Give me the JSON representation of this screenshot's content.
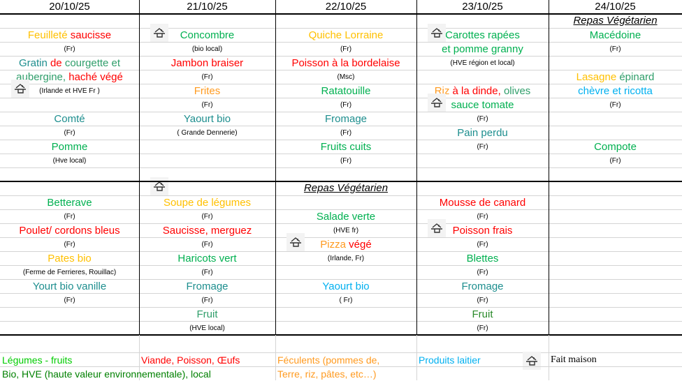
{
  "colors": {
    "yellow": "#ffc000",
    "orange": "#ff9a1f",
    "red": "#ff0000",
    "green": "#00b050",
    "teal": "#1d8e8e",
    "sea": "#2f9e6a",
    "blue": "#00b0f0",
    "darkgreen": "#2a8a2a",
    "legend_green": "#00cc00",
    "legend_darkgreen": "#008000"
  },
  "days": [
    "20/10/25",
    "21/10/25",
    "22/10/25",
    "23/10/25",
    "24/10/25"
  ],
  "week1": [
    [
      {
        "k": "e"
      },
      {
        "k": "b",
        "s": [
          {
            "t": "Feuilleté ",
            "c": "yellow"
          },
          {
            "t": "saucisse",
            "c": "red"
          }
        ]
      },
      {
        "k": "s",
        "t": "(Fr)"
      },
      {
        "k": "b",
        "s": [
          {
            "t": "Gratin ",
            "c": "teal"
          },
          {
            "t": "de ",
            "c": "red"
          },
          {
            "t": "courgette et",
            "c": "sea"
          }
        ]
      },
      {
        "k": "b",
        "s": [
          {
            "t": "aubergine, ",
            "c": "sea"
          },
          {
            "t": "haché végé",
            "c": "red"
          }
        ]
      },
      {
        "k": "s",
        "t": "(Irlande et HVE Fr )",
        "icon": "house-icon"
      },
      {
        "k": "e"
      },
      {
        "k": "b",
        "s": [
          {
            "t": "Comté",
            "c": "teal"
          }
        ]
      },
      {
        "k": "s",
        "t": "(Fr)"
      },
      {
        "k": "b",
        "s": [
          {
            "t": "Pomme",
            "c": "green"
          }
        ]
      },
      {
        "k": "s",
        "t": "(Hve local)"
      },
      {
        "k": "e"
      }
    ],
    [
      {
        "k": "e"
      },
      {
        "k": "b",
        "s": [
          {
            "t": "Concombre",
            "c": "green"
          }
        ],
        "icon": "house-icon"
      },
      {
        "k": "s",
        "t": "(bio local)"
      },
      {
        "k": "b",
        "s": [
          {
            "t": "Jambon braiser",
            "c": "red"
          }
        ]
      },
      {
        "k": "s",
        "t": "(Fr)"
      },
      {
        "k": "b",
        "s": [
          {
            "t": "Frites",
            "c": "orange"
          }
        ]
      },
      {
        "k": "s",
        "t": "(Fr)"
      },
      {
        "k": "b",
        "s": [
          {
            "t": "Yaourt bio",
            "c": "teal"
          }
        ]
      },
      {
        "k": "s",
        "t": "( Grande Dennerie)"
      },
      {
        "k": "e"
      },
      {
        "k": "e"
      },
      {
        "k": "e"
      }
    ],
    [
      {
        "k": "e"
      },
      {
        "k": "b",
        "s": [
          {
            "t": "Quiche Lorraine",
            "c": "yellow"
          }
        ]
      },
      {
        "k": "s",
        "t": "(Fr)"
      },
      {
        "k": "b",
        "s": [
          {
            "t": "Poisson à la bordelaise",
            "c": "red"
          }
        ]
      },
      {
        "k": "s",
        "t": "(Msc)"
      },
      {
        "k": "b",
        "s": [
          {
            "t": "Ratatouille",
            "c": "green"
          }
        ]
      },
      {
        "k": "s",
        "t": "(Fr)"
      },
      {
        "k": "b",
        "s": [
          {
            "t": "Fromage",
            "c": "teal"
          }
        ]
      },
      {
        "k": "s",
        "t": "(Fr)"
      },
      {
        "k": "b",
        "s": [
          {
            "t": "Fruits cuits",
            "c": "green"
          }
        ]
      },
      {
        "k": "s",
        "t": "(Fr)"
      },
      {
        "k": "e"
      }
    ],
    [
      {
        "k": "e"
      },
      {
        "k": "b",
        "s": [
          {
            "t": "Carottes rapées",
            "c": "green"
          }
        ],
        "icon": "house-icon"
      },
      {
        "k": "b",
        "s": [
          {
            "t": "et pomme granny",
            "c": "green"
          }
        ]
      },
      {
        "k": "s",
        "t": "(HVE région et local)"
      },
      {
        "k": "e"
      },
      {
        "k": "b",
        "s": [
          {
            "t": "Riz ",
            "c": "orange"
          },
          {
            "t": "à la dinde, ",
            "c": "red"
          },
          {
            "t": "olives",
            "c": "sea"
          }
        ]
      },
      {
        "k": "b",
        "s": [
          {
            "t": "sauce tomate",
            "c": "green"
          }
        ],
        "icon": "house-icon"
      },
      {
        "k": "s",
        "t": "(Fr)"
      },
      {
        "k": "b",
        "s": [
          {
            "t": "Pain perdu",
            "c": "teal"
          }
        ]
      },
      {
        "k": "s",
        "t": "(Fr)"
      },
      {
        "k": "e"
      },
      {
        "k": "e"
      }
    ],
    [
      {
        "k": "t",
        "t": "Repas Végétarien"
      },
      {
        "k": "b",
        "s": [
          {
            "t": "Macédoine",
            "c": "green"
          }
        ]
      },
      {
        "k": "s",
        "t": "(Fr)"
      },
      {
        "k": "e"
      },
      {
        "k": "b",
        "s": [
          {
            "t": "Lasagne ",
            "c": "yellow"
          },
          {
            "t": "épinard",
            "c": "sea"
          }
        ]
      },
      {
        "k": "b",
        "s": [
          {
            "t": "chèvre et ricotta",
            "c": "blue"
          }
        ]
      },
      {
        "k": "s",
        "t": "(Fr)"
      },
      {
        "k": "e"
      },
      {
        "k": "e"
      },
      {
        "k": "b",
        "s": [
          {
            "t": "Compote",
            "c": "green"
          }
        ]
      },
      {
        "k": "s",
        "t": "(Fr)"
      },
      {
        "k": "e"
      }
    ]
  ],
  "week2": [
    [
      {
        "k": "e"
      },
      {
        "k": "b",
        "s": [
          {
            "t": "Betterave",
            "c": "green"
          }
        ]
      },
      {
        "k": "s",
        "t": "(Fr)"
      },
      {
        "k": "b",
        "s": [
          {
            "t": "Poulet/ cordons bleus",
            "c": "red"
          }
        ]
      },
      {
        "k": "s",
        "t": "(Fr)"
      },
      {
        "k": "b",
        "s": [
          {
            "t": "Pates bio",
            "c": "yellow"
          }
        ]
      },
      {
        "k": "s",
        "t": "(Ferme de Ferrieres, Rouillac)"
      },
      {
        "k": "b",
        "s": [
          {
            "t": "Yourt bio vanille",
            "c": "teal"
          }
        ]
      },
      {
        "k": "s",
        "t": "(Fr)"
      },
      {
        "k": "e"
      },
      {
        "k": "e"
      }
    ],
    [
      {
        "k": "e",
        "icon": "house-icon"
      },
      {
        "k": "b",
        "s": [
          {
            "t": "Soupe de légumes",
            "c": "yellow"
          }
        ]
      },
      {
        "k": "s",
        "t": "(Fr)"
      },
      {
        "k": "b",
        "s": [
          {
            "t": "Saucisse, merguez",
            "c": "red"
          }
        ]
      },
      {
        "k": "s",
        "t": "(Fr)"
      },
      {
        "k": "b",
        "s": [
          {
            "t": "Haricots vert",
            "c": "green"
          }
        ]
      },
      {
        "k": "s",
        "t": "(Fr)"
      },
      {
        "k": "b",
        "s": [
          {
            "t": "Fromage",
            "c": "teal"
          }
        ]
      },
      {
        "k": "s",
        "t": "(Fr)"
      },
      {
        "k": "b",
        "s": [
          {
            "t": "Fruit",
            "c": "sea"
          }
        ]
      },
      {
        "k": "s",
        "t": "(HVE local)"
      }
    ],
    [
      {
        "k": "t",
        "t": "Repas Végétarien"
      },
      {
        "k": "e"
      },
      {
        "k": "b",
        "s": [
          {
            "t": "Salade verte",
            "c": "green"
          }
        ]
      },
      {
        "k": "s",
        "t": "(HVE fr)"
      },
      {
        "k": "b",
        "s": [
          {
            "t": "Pizza ",
            "c": "orange"
          },
          {
            "t": "végé",
            "c": "red"
          }
        ],
        "icon": "house-icon"
      },
      {
        "k": "s",
        "t": "(Irlande, Fr)"
      },
      {
        "k": "e"
      },
      {
        "k": "b",
        "s": [
          {
            "t": "Yaourt bio",
            "c": "blue"
          }
        ]
      },
      {
        "k": "s",
        "t": "( Fr)"
      },
      {
        "k": "e"
      },
      {
        "k": "e"
      }
    ],
    [
      {
        "k": "e"
      },
      {
        "k": "b",
        "s": [
          {
            "t": "Mousse de canard",
            "c": "red"
          }
        ]
      },
      {
        "k": "s",
        "t": "(Fr)"
      },
      {
        "k": "b",
        "s": [
          {
            "t": "Poisson frais",
            "c": "red"
          }
        ],
        "icon": "house-icon"
      },
      {
        "k": "s",
        "t": "(Fr)"
      },
      {
        "k": "b",
        "s": [
          {
            "t": "Blettes",
            "c": "green"
          }
        ]
      },
      {
        "k": "s",
        "t": "(Fr)"
      },
      {
        "k": "b",
        "s": [
          {
            "t": "Fromage",
            "c": "teal"
          }
        ]
      },
      {
        "k": "s",
        "t": "(Fr)"
      },
      {
        "k": "b",
        "s": [
          {
            "t": "Fruit",
            "c": "darkgreen"
          }
        ]
      },
      {
        "k": "s",
        "t": "(Fr)"
      }
    ],
    [
      {
        "k": "e"
      },
      {
        "k": "e"
      },
      {
        "k": "e"
      },
      {
        "k": "e"
      },
      {
        "k": "e"
      },
      {
        "k": "e"
      },
      {
        "k": "e"
      },
      {
        "k": "e"
      },
      {
        "k": "e"
      },
      {
        "k": "e"
      },
      {
        "k": "e"
      }
    ]
  ],
  "legend": {
    "vegetables": "Légumes - fruits",
    "organic": "Bio, HVE (haute valeur environnementale), local",
    "meat": "Viande, Poisson, Œufs",
    "starch1": "Féculents (pommes de,",
    "starch2": "Terre, riz, pâtes, etc…)",
    "dairy": "Produits laitier",
    "homemade_icon": "house-icon",
    "homemade": "Fait maison"
  }
}
